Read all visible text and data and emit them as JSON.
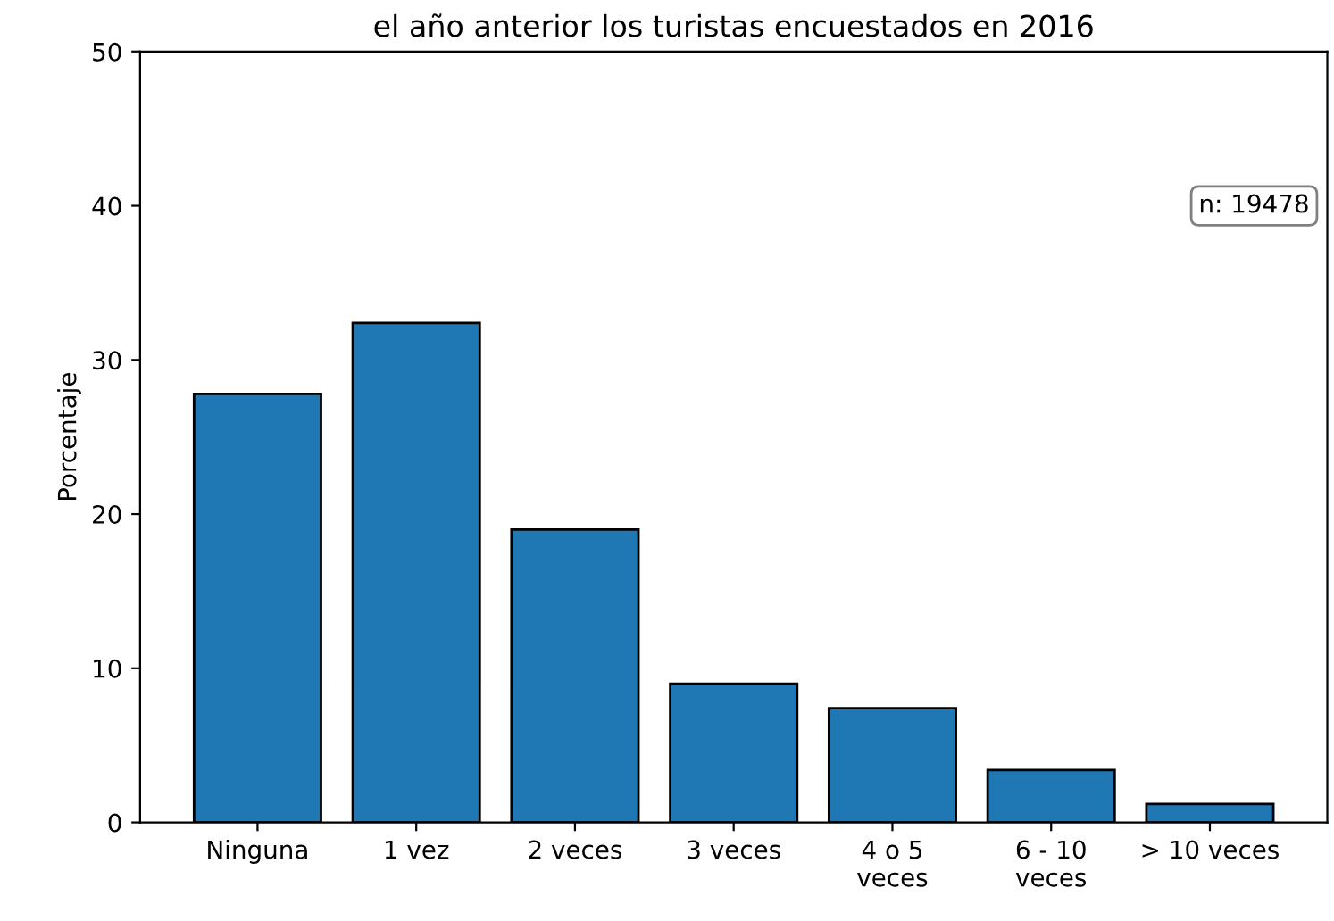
{
  "chart_data": {
    "type": "bar",
    "title": "el año anterior los turistas encuestados en 2016",
    "ylabel": "Porcentaje",
    "categories": [
      "Ninguna",
      "1 vez",
      "2 veces",
      "3 veces",
      "4 o 5\nveces",
      "6 - 10\nveces",
      "> 10 veces"
    ],
    "values": [
      27.8,
      32.4,
      19.0,
      9.0,
      7.4,
      3.4,
      1.2
    ],
    "color": "#1f77b4",
    "ylim": [
      0,
      50
    ],
    "yticks": [
      0,
      10,
      20,
      30,
      40,
      50
    ],
    "grid": false,
    "annotations": [
      "n: 19478"
    ]
  }
}
